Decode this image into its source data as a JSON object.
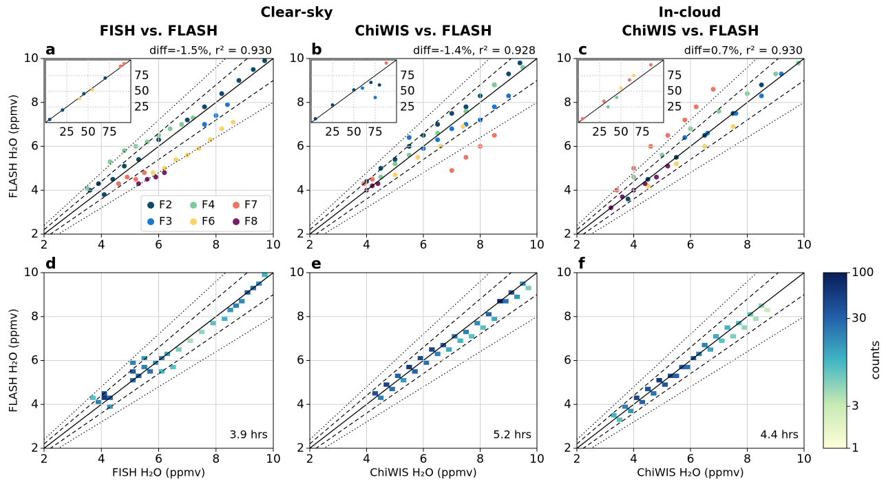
{
  "figure": {
    "headers": [
      "Clear-sky",
      "In-cloud"
    ],
    "reference_lines": [
      {
        "slope": 1,
        "style": "solid"
      },
      {
        "slope": 1.1,
        "style": "dashed"
      },
      {
        "slope": 0.9,
        "style": "dashed"
      },
      {
        "slope": 1.2,
        "style": "dotted"
      },
      {
        "slope": 0.8,
        "style": "dotted"
      }
    ]
  },
  "chart_data": [
    {
      "type": "scatter",
      "panel": "a",
      "title": "FISH vs. FLASH",
      "annotation": "diff=-1.5%,  r² = 0.930",
      "ylabel": "FLASH H₂O (ppmv)",
      "xlim": [
        2,
        10
      ],
      "ylim": [
        2,
        10
      ],
      "xticks": [
        2,
        4,
        6,
        8,
        10
      ],
      "yticks": [
        2,
        4,
        6,
        8,
        10
      ],
      "grid": true,
      "legend": "lower right",
      "series": [
        {
          "name": "F2",
          "color": "#0b4a6a",
          "x": [
            3.6,
            3.9,
            4.1,
            4.4,
            4.8,
            5.3,
            6.0,
            7.0,
            7.6,
            8.2,
            8.8,
            9.3,
            9.7
          ],
          "y": [
            4.0,
            4.3,
            3.8,
            4.5,
            5.1,
            5.4,
            6.3,
            7.2,
            7.8,
            8.4,
            9.0,
            9.5,
            9.9
          ]
        },
        {
          "name": "F3",
          "color": "#1a78d4",
          "x": [
            7.6,
            8.0,
            8.4
          ],
          "y": [
            7.0,
            7.4,
            7.9
          ]
        },
        {
          "name": "F4",
          "color": "#7fcb9a",
          "x": [
            3.5,
            4.3,
            4.8,
            5.2,
            5.6,
            6.0,
            6.4,
            6.8,
            7.2
          ],
          "y": [
            4.1,
            5.3,
            5.8,
            6.0,
            6.2,
            6.5,
            6.8,
            7.0,
            7.3
          ]
        },
        {
          "name": "F6",
          "color": "#fbd36a",
          "x": [
            5.8,
            6.2,
            6.6,
            7.0,
            7.4,
            7.8,
            8.2,
            8.6
          ],
          "y": [
            4.8,
            5.0,
            5.4,
            5.6,
            5.9,
            6.3,
            6.8,
            7.1
          ]
        },
        {
          "name": "F7",
          "color": "#ef7463",
          "x": [
            4.6,
            4.9,
            5.2,
            5.5
          ],
          "y": [
            4.3,
            4.6,
            4.5,
            4.8
          ]
        },
        {
          "name": "F8",
          "color": "#7a1c6a",
          "x": [
            5.3,
            5.6,
            5.9,
            6.2
          ],
          "y": [
            4.3,
            4.5,
            4.6,
            4.8
          ]
        }
      ],
      "inset": {
        "xlim": [
          0,
          100
        ],
        "ylim": [
          0,
          100
        ],
        "xticks": [
          25,
          50,
          75
        ],
        "yticks": [
          25,
          50,
          75
        ],
        "series": [
          {
            "color": "#0b4a6a",
            "x": [
              5,
              20,
              45,
              70
            ],
            "y": [
              5,
              20,
              46,
              71
            ]
          },
          {
            "color": "#fbd36a",
            "x": [
              40,
              55
            ],
            "y": [
              38,
              52
            ]
          },
          {
            "color": "#ef7463",
            "x": [
              88,
              92
            ],
            "y": [
              90,
              94
            ]
          }
        ]
      }
    },
    {
      "type": "scatter",
      "panel": "b",
      "title": "ChiWIS vs. FLASH",
      "annotation": "diff=-1.4%,  r² = 0.928",
      "xlim": [
        2,
        10
      ],
      "ylim": [
        2,
        10
      ],
      "xticks": [
        2,
        4,
        6,
        8,
        10
      ],
      "yticks": [
        2,
        4,
        6,
        8,
        10
      ],
      "grid": true,
      "series": [
        {
          "name": "F2",
          "color": "#0b4a6a",
          "x": [
            4.0,
            4.5,
            5.0,
            5.5,
            6.0,
            6.5,
            7.0,
            7.5,
            8.0,
            8.5,
            9.0,
            9.4
          ],
          "y": [
            4.4,
            5.0,
            5.4,
            6.0,
            6.5,
            7.0,
            7.5,
            7.8,
            8.3,
            8.8,
            9.3,
            9.8
          ]
        },
        {
          "name": "F3",
          "color": "#1a78d4",
          "x": [
            5.5,
            6.0,
            6.5,
            7.0,
            7.5,
            8.0,
            8.5,
            9.0
          ],
          "y": [
            6.4,
            5.9,
            6.3,
            6.8,
            7.0,
            7.2,
            7.8,
            8.3
          ]
        },
        {
          "name": "F4",
          "color": "#7fcb9a",
          "x": [
            4.5,
            5.0,
            5.5,
            6.5,
            7.5,
            8.5,
            9.5
          ],
          "y": [
            4.6,
            5.2,
            5.6,
            6.6,
            7.6,
            8.8,
            9.6
          ]
        },
        {
          "name": "F6",
          "color": "#fbd36a",
          "x": [
            4.2,
            5.0,
            5.8,
            6.6,
            7.4
          ],
          "y": [
            4.2,
            4.7,
            5.5,
            6.0,
            6.9
          ]
        },
        {
          "name": "F7",
          "color": "#ef7463",
          "x": [
            3.9,
            4.2,
            7.0,
            7.5,
            8.0,
            8.5
          ],
          "y": [
            4.3,
            4.5,
            4.9,
            5.5,
            6.0,
            6.5
          ]
        },
        {
          "name": "F8",
          "color": "#7a1c6a",
          "x": [
            4.0,
            4.2,
            4.4
          ],
          "y": [
            4.0,
            4.2,
            4.3
          ]
        }
      ],
      "inset": {
        "xlim": [
          0,
          100
        ],
        "ylim": [
          0,
          100
        ],
        "xticks": [
          25,
          50,
          75
        ],
        "yticks": [
          25,
          50,
          75
        ],
        "series": [
          {
            "color": "#0b4a6a",
            "x": [
              5,
              25,
              50,
              70,
              80
            ],
            "y": [
              6,
              28,
              52,
              64,
              60
            ]
          },
          {
            "color": "#1a78d4",
            "x": [
              60,
              75
            ],
            "y": [
              55,
              40
            ]
          },
          {
            "color": "#ef7463",
            "x": [
              88
            ],
            "y": [
              95
            ]
          }
        ]
      }
    },
    {
      "type": "scatter",
      "panel": "c",
      "title": "ChiWIS vs. FLASH",
      "annotation": "diff=0.7%,  r² = 0.930",
      "xlim": [
        2,
        10
      ],
      "ylim": [
        2,
        10
      ],
      "xticks": [
        2,
        4,
        6,
        8,
        10
      ],
      "yticks": [
        2,
        4,
        6,
        8,
        10
      ],
      "grid": true,
      "series": [
        {
          "name": "F2",
          "color": "#0b4a6a",
          "x": [
            3.8,
            4.5,
            5.5,
            6.5,
            7.5,
            8.5
          ],
          "y": [
            3.6,
            4.5,
            5.5,
            6.5,
            7.5,
            8.8
          ]
        },
        {
          "name": "F3",
          "color": "#1a78d4",
          "x": [
            5.8,
            6.6,
            7.6,
            8.5,
            9.2
          ],
          "y": [
            6.4,
            6.6,
            7.5,
            8.3,
            9.3
          ]
        },
        {
          "name": "F4",
          "color": "#7fcb9a",
          "x": [
            4.0,
            5.0,
            6.0,
            7.0,
            8.0,
            9.0,
            9.8
          ],
          "y": [
            4.6,
            5.6,
            6.8,
            7.6,
            8.4,
            9.3,
            9.8
          ]
        },
        {
          "name": "F6",
          "color": "#fbd36a",
          "x": [
            4.5,
            5.5,
            6.5,
            7.5
          ],
          "y": [
            4.2,
            5.2,
            6.0,
            6.9
          ]
        },
        {
          "name": "F7",
          "color": "#ef7463",
          "x": [
            3.4,
            4.0,
            4.6,
            5.2,
            5.8,
            6.2,
            6.8
          ],
          "y": [
            4.0,
            5.0,
            6.0,
            6.5,
            7.2,
            7.8,
            8.6
          ]
        },
        {
          "name": "F8",
          "color": "#7a1c6a",
          "x": [
            3.2,
            3.6,
            4.0,
            4.4,
            4.8,
            5.2
          ],
          "y": [
            3.2,
            3.7,
            4.0,
            4.3,
            4.6,
            5.1
          ]
        }
      ],
      "inset": {
        "xlim": [
          0,
          100
        ],
        "ylim": [
          0,
          100
        ],
        "xticks": [
          25,
          50,
          75
        ],
        "yticks": [
          25,
          50,
          75
        ],
        "series": [
          {
            "color": "#ef7463",
            "x": [
              5,
              30,
              60,
              85
            ],
            "y": [
              6,
              34,
              68,
              92
            ]
          },
          {
            "color": "#7fcb9a",
            "x": [
              35,
              45
            ],
            "y": [
              25,
              40
            ]
          },
          {
            "color": "#fbd36a",
            "x": [
              50,
              65
            ],
            "y": [
              55,
              75
            ]
          }
        ]
      }
    },
    {
      "type": "heatmap",
      "panel": "d",
      "annotation": "3.9 hrs",
      "xlabel": "FISH H₂O (ppmv)",
      "ylabel": "FLASH H₂O (ppmv)",
      "xlim": [
        2,
        10
      ],
      "ylim": [
        2,
        10
      ],
      "xticks": [
        2,
        4,
        6,
        8,
        10
      ],
      "yticks": [
        2,
        4,
        6,
        8,
        10
      ],
      "grid": true,
      "cell_size": 0.2,
      "x": [
        3.6,
        3.8,
        4.0,
        4.0,
        4.2,
        4.2,
        5.0,
        5.0,
        5.0,
        5.2,
        5.4,
        5.4,
        5.6,
        5.8,
        6.0,
        6.0,
        6.2,
        6.4,
        6.6,
        7.0,
        7.4,
        7.8,
        8.2,
        8.4,
        8.6,
        8.8,
        9.0,
        9.2,
        9.4,
        9.6
      ],
      "y": [
        4.2,
        4.0,
        4.2,
        4.4,
        3.8,
        4.2,
        5.0,
        5.4,
        5.8,
        5.2,
        5.6,
        6.0,
        5.4,
        5.8,
        6.0,
        5.4,
        6.2,
        5.6,
        6.4,
        6.8,
        7.2,
        7.6,
        7.8,
        8.2,
        8.4,
        8.6,
        9.0,
        9.2,
        9.4,
        9.8
      ],
      "counts": [
        8,
        20,
        60,
        40,
        15,
        30,
        25,
        35,
        20,
        30,
        20,
        15,
        25,
        15,
        20,
        10,
        12,
        8,
        6,
        4,
        5,
        8,
        10,
        15,
        20,
        18,
        30,
        25,
        15,
        10
      ]
    },
    {
      "type": "heatmap",
      "panel": "e",
      "annotation": "5.2 hrs",
      "xlabel": "ChiWIS H₂O (ppmv)",
      "xlim": [
        2,
        10
      ],
      "ylim": [
        2,
        10
      ],
      "xticks": [
        2,
        4,
        6,
        8,
        10
      ],
      "yticks": [
        2,
        4,
        6,
        8,
        10
      ],
      "grid": true,
      "cell_size": 0.2,
      "x": [
        4.2,
        4.6,
        5.0,
        5.4,
        5.8,
        6.2,
        6.6,
        7.0,
        7.4,
        7.8,
        8.2,
        8.6,
        9.0,
        9.4,
        4.4,
        4.8,
        5.2,
        5.6,
        6.0,
        6.4,
        6.8,
        7.2,
        7.6,
        8.0,
        8.4,
        8.8,
        9.2,
        9.6
      ],
      "y": [
        4.4,
        4.8,
        5.2,
        5.6,
        6.0,
        6.4,
        6.6,
        7.0,
        7.2,
        7.6,
        8.0,
        8.6,
        9.0,
        9.4,
        4.2,
        4.6,
        5.0,
        5.4,
        5.8,
        6.2,
        6.4,
        6.8,
        7.0,
        7.4,
        7.8,
        8.6,
        8.8,
        9.2
      ],
      "counts": [
        40,
        50,
        30,
        60,
        45,
        50,
        35,
        25,
        20,
        18,
        30,
        80,
        40,
        15,
        20,
        25,
        15,
        30,
        25,
        20,
        12,
        10,
        8,
        8,
        12,
        25,
        15,
        6
      ]
    },
    {
      "type": "heatmap",
      "panel": "f",
      "annotation": "4.4 hrs",
      "xlabel": "ChiWIS H₂O (ppmv)",
      "xlim": [
        2,
        10
      ],
      "ylim": [
        2,
        10
      ],
      "xticks": [
        2,
        4,
        6,
        8,
        10
      ],
      "yticks": [
        2,
        4,
        6,
        8,
        10
      ],
      "grid": true,
      "cell_size": 0.2,
      "x": [
        3.2,
        3.6,
        4.0,
        4.4,
        4.8,
        5.2,
        5.6,
        6.0,
        6.4,
        6.8,
        7.2,
        7.6,
        8.0,
        8.4,
        3.4,
        3.8,
        4.2,
        4.6,
        5.0,
        5.4,
        5.8,
        6.2,
        6.6,
        7.0,
        7.4,
        7.8,
        8.2,
        8.6
      ],
      "y": [
        3.4,
        3.8,
        4.2,
        4.6,
        5.0,
        5.2,
        5.6,
        6.0,
        6.6,
        7.0,
        7.4,
        7.6,
        8.0,
        8.4,
        3.2,
        3.6,
        4.0,
        4.4,
        4.8,
        5.2,
        5.6,
        6.2,
        6.4,
        6.8,
        7.0,
        7.4,
        7.8,
        8.2
      ],
      "counts": [
        10,
        20,
        50,
        40,
        60,
        45,
        35,
        40,
        20,
        12,
        10,
        8,
        8,
        5,
        8,
        15,
        30,
        25,
        35,
        30,
        25,
        20,
        12,
        8,
        6,
        5,
        4,
        3
      ]
    },
    {
      "type": "colorbar",
      "label": "counts",
      "log": true,
      "ylim": [
        1,
        100
      ],
      "yticks": [
        1,
        3,
        30,
        100
      ],
      "colors": [
        "#ffffd9",
        "#c7e9b4",
        "#41b6c4",
        "#225ea8",
        "#081d58"
      ]
    }
  ]
}
